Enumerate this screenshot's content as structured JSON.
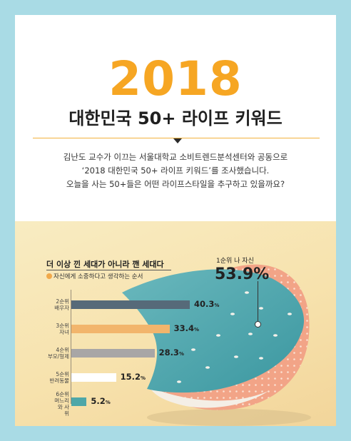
{
  "header": {
    "year": "2018",
    "headline": "대한민국 50+ 라이프 키워드",
    "intro": [
      "김난도 교수가 이끄는 서울대학교 소비트렌드분석센터와 공동으로",
      "‘2018 대한민국 50+ 라이프 키워드’를 조사했습니다.",
      "오늘을 사는 50+들은 어떤 라이프스타일을 추구하고 있을까요?"
    ]
  },
  "chart": {
    "title": "더 이상 낀 세대가 아니라 깬 세대다",
    "subtitle": "자신에게 소중하다고 생각하는 순서",
    "callout": {
      "label": "1순위 나 자신",
      "value": "53.9%"
    }
  },
  "chart_data": {
    "type": "bar",
    "orientation": "horizontal",
    "title": "더 이상 낀 세대가 아니라 깬 세대다",
    "subtitle": "자신에게 소중하다고 생각하는 순서",
    "unit": "%",
    "highlight": {
      "rank": "1순위",
      "label": "나 자신",
      "value": 53.9
    },
    "categories": [
      {
        "rank": "2순위",
        "label": "배우자"
      },
      {
        "rank": "3순위",
        "label": "자녀"
      },
      {
        "rank": "4순위",
        "label": "부모/형제"
      },
      {
        "rank": "5순위",
        "label": "반려동물"
      },
      {
        "rank": "6순위",
        "label": "며느리와 사위"
      }
    ],
    "values": [
      40.3,
      33.4,
      28.3,
      15.2,
      5.2
    ],
    "colors": [
      "#566a79",
      "#f2b56c",
      "#a8a6a6",
      "#ffffff",
      "#4ea7a8"
    ]
  }
}
